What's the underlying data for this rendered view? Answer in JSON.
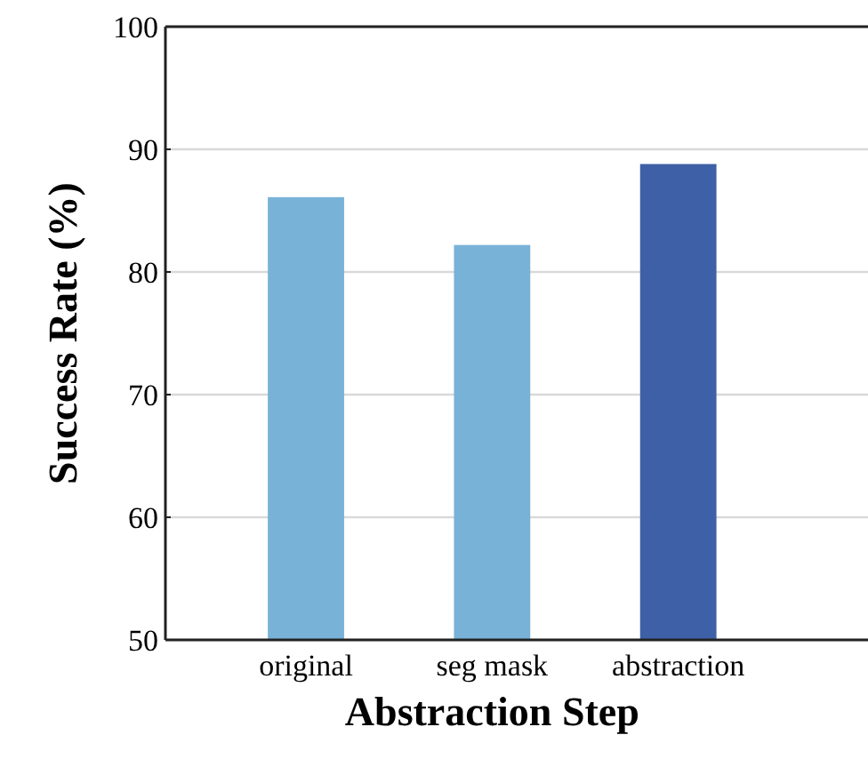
{
  "chart_data": {
    "type": "bar",
    "xlabel": "Abstraction Step",
    "ylabel": "Success Rate (%)",
    "categories": [
      "original",
      "seg mask",
      "abstraction"
    ],
    "values": [
      86.1,
      82.2,
      88.8
    ],
    "colors": [
      "#79b2d7",
      "#79b2d7",
      "#3e60a6"
    ],
    "ylim": [
      50,
      100
    ],
    "yticks": [
      50,
      60,
      70,
      80,
      90,
      100
    ],
    "grid": "y"
  }
}
